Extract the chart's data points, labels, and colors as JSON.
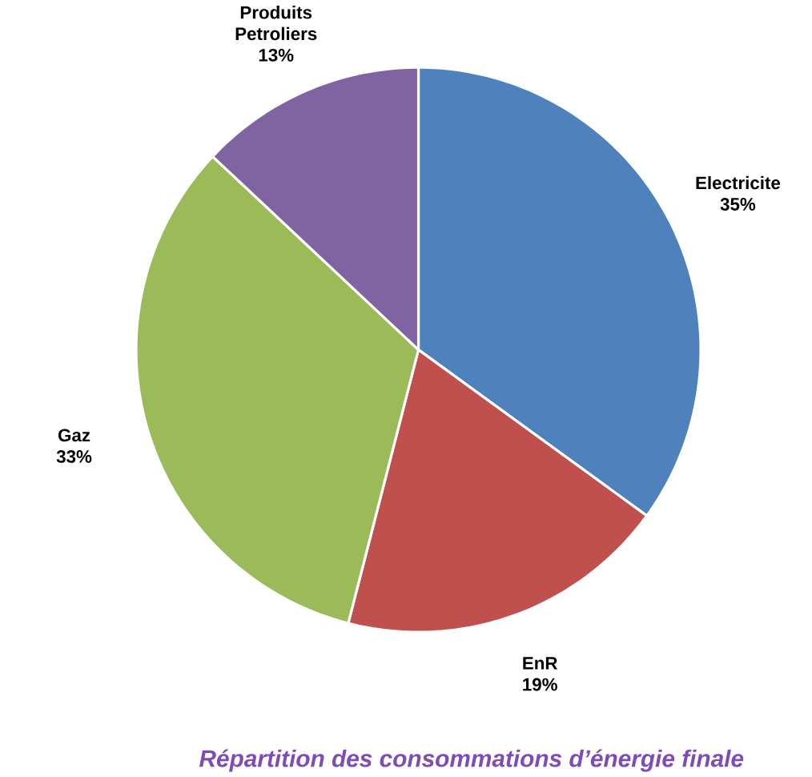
{
  "chart_data": {
    "type": "pie",
    "title": "Répartition des consommations d’énergie finale",
    "categories": [
      "Electricite",
      "EnR",
      "Gaz",
      "Produits Petroliers"
    ],
    "values": [
      35,
      19,
      33,
      13
    ],
    "colors": [
      "#4f81bd",
      "#c0504d",
      "#9bbb59",
      "#8064a2"
    ],
    "value_labels": [
      "35%",
      "19%",
      "33%",
      "13%"
    ]
  }
}
